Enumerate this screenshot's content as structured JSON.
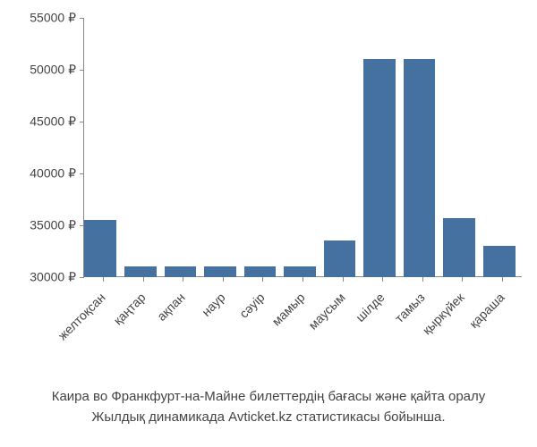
{
  "chart": {
    "type": "bar",
    "categories": [
      "желтоқсан",
      "қаңтар",
      "ақпан",
      "наур",
      "сәуір",
      "мамыр",
      "маусым",
      "шілде",
      "тамыз",
      "қыркүйек",
      "қараша"
    ],
    "values": [
      35500,
      31000,
      31000,
      31000,
      31000,
      31000,
      33500,
      51000,
      51000,
      35700,
      33000
    ],
    "bar_color": "#4471a0",
    "y_axis": {
      "min": 30000,
      "max": 55000,
      "step": 5000,
      "currency_suffix": " ₽",
      "ticks": [
        "30000 ₽",
        "35000 ₽",
        "40000 ₽",
        "45000 ₽",
        "50000 ₽",
        "55000 ₽"
      ]
    },
    "background_color": "#ffffff",
    "axis_color": "#888888",
    "text_color": "#444444",
    "label_fontsize": 14,
    "caption_fontsize": 15,
    "bar_width_ratio": 0.8,
    "x_label_rotation": -45
  },
  "caption": {
    "line1": "Каира во Франкфурт-на-Майне билеттердің бағасы және қайта оралу",
    "line2": "Жылдық динамикада Avticket.kz статистикасы бойынша."
  }
}
